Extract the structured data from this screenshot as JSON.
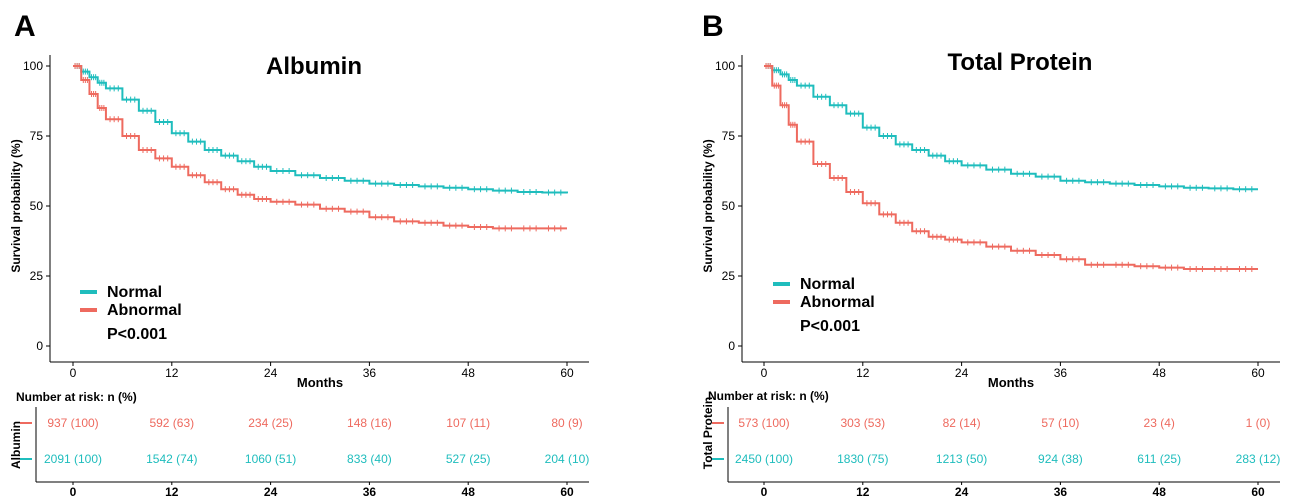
{
  "colors": {
    "normal": "#1fbdbd",
    "abnormal": "#ee6a5f",
    "text": "#000000"
  },
  "chart_data": [
    {
      "panel_label": "A",
      "type": "line",
      "title": "Albumin",
      "xlabel": "Months",
      "ylabel": "Survival probability (%)",
      "xlim": [
        0,
        60
      ],
      "ylim": [
        0,
        100
      ],
      "xticks": [
        "0",
        "12",
        "24",
        "36",
        "48",
        "60"
      ],
      "yticks": [
        "0",
        "25",
        "50",
        "75",
        "100"
      ],
      "grid": false,
      "legend_position": "bottom-left",
      "pvalue": "P<0.001",
      "series": [
        {
          "name": "Normal",
          "color_key": "normal",
          "x": [
            0,
            1,
            2,
            3,
            4,
            6,
            8,
            10,
            12,
            14,
            16,
            18,
            20,
            22,
            24,
            27,
            30,
            33,
            36,
            39,
            42,
            45,
            48,
            51,
            54,
            57,
            60
          ],
          "y": [
            100,
            98,
            96,
            94,
            92,
            88,
            84,
            80,
            76,
            73,
            70,
            68,
            66,
            64,
            62.5,
            61,
            60,
            59,
            58,
            57.5,
            57,
            56.5,
            56,
            55.5,
            55,
            54.8,
            54.5
          ]
        },
        {
          "name": "Abnormal",
          "color_key": "abnormal",
          "x": [
            0,
            1,
            2,
            3,
            4,
            6,
            8,
            10,
            12,
            14,
            16,
            18,
            20,
            22,
            24,
            27,
            30,
            33,
            36,
            39,
            42,
            45,
            48,
            51,
            54,
            57,
            60
          ],
          "y": [
            100,
            95,
            90,
            85,
            81,
            75,
            70,
            67,
            64,
            61,
            58.5,
            56,
            54,
            52.5,
            51.5,
            50.5,
            49,
            48,
            46,
            44.5,
            44,
            43,
            42.5,
            42,
            42,
            42,
            42
          ]
        }
      ],
      "risk_table": {
        "heading": "Number at risk: n (%)",
        "strata_label": "Albumin",
        "times": [
          "0",
          "12",
          "24",
          "36",
          "48",
          "60"
        ],
        "rows": [
          {
            "color_key": "abnormal",
            "values": [
              "937 (100)",
              "592 (63)",
              "234 (25)",
              "148 (16)",
              "107 (11)",
              "80 (9)"
            ]
          },
          {
            "color_key": "normal",
            "values": [
              "2091 (100)",
              "1542 (74)",
              "1060 (51)",
              "833 (40)",
              "527 (25)",
              "204 (10)"
            ]
          }
        ]
      }
    },
    {
      "panel_label": "B",
      "type": "line",
      "title": "Total Protein",
      "xlabel": "Months",
      "ylabel": "Survival probability (%)",
      "xlim": [
        0,
        60
      ],
      "ylim": [
        0,
        100
      ],
      "xticks": [
        "0",
        "12",
        "24",
        "36",
        "48",
        "60"
      ],
      "yticks": [
        "0",
        "25",
        "50",
        "75",
        "100"
      ],
      "grid": false,
      "legend_position": "bottom-left",
      "pvalue": "P<0.001",
      "series": [
        {
          "name": "Normal",
          "color_key": "normal",
          "x": [
            0,
            1,
            2,
            3,
            4,
            6,
            8,
            10,
            12,
            14,
            16,
            18,
            20,
            22,
            24,
            27,
            30,
            33,
            36,
            39,
            42,
            45,
            48,
            51,
            54,
            57,
            60
          ],
          "y": [
            100,
            98.5,
            97,
            95,
            93,
            89,
            86,
            83,
            78,
            75,
            72,
            70,
            68,
            66,
            64.5,
            63,
            61.5,
            60.5,
            59,
            58.5,
            58,
            57.5,
            57,
            56.5,
            56.3,
            56,
            56
          ]
        },
        {
          "name": "Abnormal",
          "color_key": "abnormal",
          "x": [
            0,
            1,
            2,
            3,
            4,
            6,
            8,
            10,
            12,
            14,
            16,
            18,
            20,
            22,
            24,
            27,
            30,
            33,
            36,
            39,
            42,
            45,
            48,
            51,
            54,
            57,
            60
          ],
          "y": [
            100,
            93,
            86,
            79,
            73,
            65,
            60,
            55,
            51,
            47,
            44,
            41,
            39,
            38,
            37,
            35.5,
            34,
            32.5,
            31,
            29,
            29,
            28.5,
            28,
            27.5,
            27.5,
            27.5,
            27.5
          ]
        }
      ],
      "risk_table": {
        "heading": "Number at risk: n (%)",
        "strata_label": "Total Protein",
        "times": [
          "0",
          "12",
          "24",
          "36",
          "48",
          "60"
        ],
        "rows": [
          {
            "color_key": "abnormal",
            "values": [
              "573 (100)",
              "303 (53)",
              "82 (14)",
              "57 (10)",
              "23 (4)",
              "1 (0)"
            ]
          },
          {
            "color_key": "normal",
            "values": [
              "2450 (100)",
              "1830 (75)",
              "1213 (50)",
              "924 (38)",
              "611 (25)",
              "283 (12)"
            ]
          }
        ]
      }
    }
  ]
}
